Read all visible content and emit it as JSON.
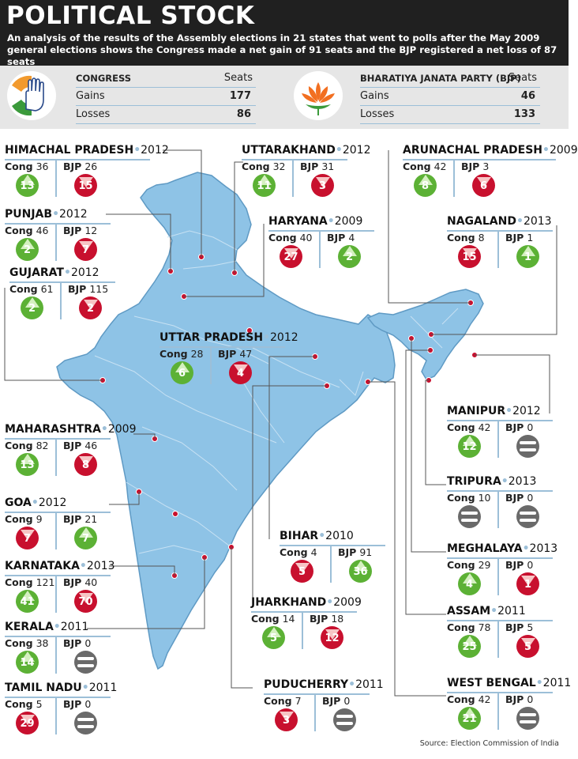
{
  "title": "POLITICAL STOCK",
  "subtitle": "An analysis of the results of the Assembly elections in 21 states that went to polls after the May 2009 general elections shows the Congress made a net gain of 91 seats and the BJP registered a net loss of 87 seats",
  "summary": {
    "congress": {
      "party": "CONGRESS",
      "seats_label": "Seats",
      "gains_label": "Gains",
      "gains": "177",
      "losses_label": "Losses",
      "losses": "86"
    },
    "bjp": {
      "party": "BHARATIYA JANATA PARTY (BJP)",
      "seats_label": "Seats",
      "gains_label": "Gains",
      "gains": "46",
      "losses_label": "Losses",
      "losses": "133"
    }
  },
  "labels": {
    "cong": "Cong",
    "bjp": "BJP"
  },
  "states": [
    {
      "name": "HIMACHAL PRADESH",
      "year": "2012",
      "cong": "36",
      "bjp": "26",
      "cong_change": "13",
      "cong_status": "gain",
      "bjp_change": "15",
      "bjp_status": "loss"
    },
    {
      "name": "UTTARAKHAND",
      "year": "2012",
      "cong": "32",
      "bjp": "31",
      "cong_change": "11",
      "cong_status": "gain",
      "bjp_change": "3",
      "bjp_status": "loss"
    },
    {
      "name": "ARUNACHAL PRADESH",
      "year": "2009",
      "cong": "42",
      "bjp": "3",
      "cong_change": "8",
      "cong_status": "gain",
      "bjp_change": "6",
      "bjp_status": "loss"
    },
    {
      "name": "PUNJAB",
      "year": "2012",
      "cong": "46",
      "bjp": "12",
      "cong_change": "2",
      "cong_status": "gain",
      "bjp_change": "7",
      "bjp_status": "loss"
    },
    {
      "name": "HARYANA",
      "year": "2009",
      "cong": "40",
      "bjp": "4",
      "cong_change": "27",
      "cong_status": "loss",
      "bjp_change": "2",
      "bjp_status": "gain"
    },
    {
      "name": "NAGALAND",
      "year": "2013",
      "cong": "8",
      "bjp": "1",
      "cong_change": "15",
      "cong_status": "loss",
      "bjp_change": "1",
      "bjp_status": "gain"
    },
    {
      "name": "GUJARAT",
      "year": "2012",
      "cong": "61",
      "bjp": "115",
      "cong_change": "2",
      "cong_status": "gain",
      "bjp_change": "2",
      "bjp_status": "loss"
    },
    {
      "name": "UTTAR PRADESH",
      "year": "2012",
      "cong": "28",
      "bjp": "47",
      "cong_change": "6",
      "cong_status": "gain",
      "bjp_change": "4",
      "bjp_status": "loss"
    },
    {
      "name": "MAHARASHTRA",
      "year": "2009",
      "cong": "82",
      "bjp": "46",
      "cong_change": "13",
      "cong_status": "gain",
      "bjp_change": "8",
      "bjp_status": "loss"
    },
    {
      "name": "MANIPUR",
      "year": "2012",
      "cong": "42",
      "bjp": "0",
      "cong_change": "12",
      "cong_status": "gain",
      "bjp_change": "",
      "bjp_status": "zero"
    },
    {
      "name": "TRIPURA",
      "year": "2013",
      "cong": "10",
      "bjp": "0",
      "cong_change": "",
      "cong_status": "zero",
      "bjp_change": "",
      "bjp_status": "zero"
    },
    {
      "name": "GOA",
      "year": "2012",
      "cong": "9",
      "bjp": "21",
      "cong_change": "7",
      "cong_status": "loss",
      "bjp_change": "7",
      "bjp_status": "gain"
    },
    {
      "name": "BIHAR",
      "year": "2010",
      "cong": "4",
      "bjp": "91",
      "cong_change": "5",
      "cong_status": "loss",
      "bjp_change": "36",
      "bjp_status": "gain"
    },
    {
      "name": "MEGHALAYA",
      "year": "2013",
      "cong": "29",
      "bjp": "0",
      "cong_change": "4",
      "cong_status": "gain",
      "bjp_change": "1",
      "bjp_status": "loss"
    },
    {
      "name": "KARNATAKA",
      "year": "2013",
      "cong": "121",
      "bjp": "40",
      "cong_change": "41",
      "cong_status": "gain",
      "bjp_change": "70",
      "bjp_status": "loss"
    },
    {
      "name": "JHARKHAND",
      "year": "2009",
      "cong": "14",
      "bjp": "18",
      "cong_change": "5",
      "cong_status": "gain",
      "bjp_change": "12",
      "bjp_status": "loss"
    },
    {
      "name": "KERALA",
      "year": "2011",
      "cong": "38",
      "bjp": "0",
      "cong_change": "14",
      "cong_status": "gain",
      "bjp_change": "",
      "bjp_status": "zero"
    },
    {
      "name": "ASSAM",
      "year": "2011",
      "cong": "78",
      "bjp": "5",
      "cong_change": "25",
      "cong_status": "gain",
      "bjp_change": "5",
      "bjp_status": "loss"
    },
    {
      "name": "TAMIL NADU",
      "year": "2011",
      "cong": "5",
      "bjp": "0",
      "cong_change": "29",
      "cong_status": "loss",
      "bjp_change": "",
      "bjp_status": "zero"
    },
    {
      "name": "PUDUCHERRY",
      "year": "2011",
      "cong": "7",
      "bjp": "0",
      "cong_change": "3",
      "cong_status": "loss",
      "bjp_change": "",
      "bjp_status": "zero"
    },
    {
      "name": "WEST BENGAL",
      "year": "2011",
      "cong": "42",
      "bjp": "0",
      "cong_change": "21",
      "cong_status": "gain",
      "bjp_change": "",
      "bjp_status": "zero"
    }
  ],
  "source": "Source: Election Commission of India",
  "colors": {
    "gain": "#5cb135",
    "loss": "#c8102e",
    "zero": "#6a6a6a",
    "map_fill": "#8ec3e6",
    "rule": "#9cbfd8",
    "header_bg": "#202020"
  },
  "icons": {
    "congress_logo": "hand-symbol-icon",
    "bjp_logo": "lotus-symbol-icon"
  }
}
